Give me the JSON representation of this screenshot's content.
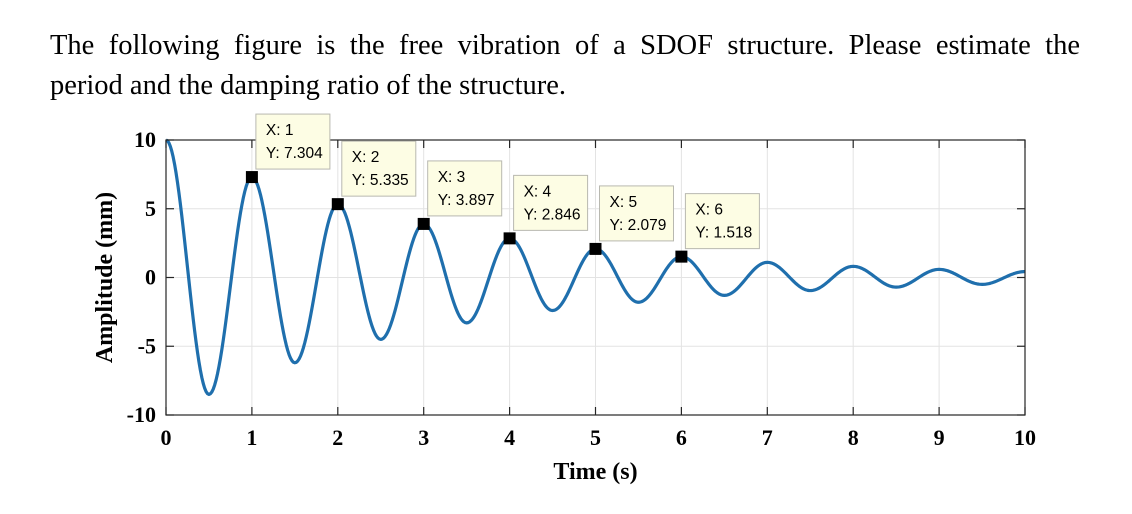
{
  "question": {
    "line1": "The following figure is the free vibration of a SDOF structure. Please estimate the",
    "line2": "period and the damping ratio of the structure."
  },
  "chart_data": {
    "type": "line",
    "xlabel": "Time (s)",
    "ylabel": "Amplitude (mm)",
    "xlim": [
      0,
      10
    ],
    "ylim": [
      -10,
      10
    ],
    "xticks": [
      0,
      1,
      2,
      3,
      4,
      5,
      6,
      7,
      8,
      9,
      10
    ],
    "yticks": [
      10,
      5,
      0,
      -5,
      -10
    ],
    "grid": true,
    "line_color": "#1f6fad",
    "series": [
      {
        "x": [
          0,
          0.5,
          1,
          1.5,
          2,
          2.5,
          3,
          3.5,
          4,
          4.5,
          5,
          5.5,
          6,
          6.5,
          7,
          7.5,
          8,
          8.5,
          9,
          9.5,
          10
        ],
        "y": [
          10,
          -8.5,
          7.304,
          -6.2,
          5.335,
          -4.5,
          3.897,
          -3.3,
          2.846,
          -2.4,
          2.079,
          -1.8,
          1.518,
          -1.3,
          1.1,
          -0.95,
          0.81,
          -0.7,
          0.59,
          -0.5,
          0.43
        ]
      }
    ],
    "datatips": [
      {
        "x": 1,
        "y": 7.304,
        "x_label": "X: 1",
        "y_label": "Y: 7.304"
      },
      {
        "x": 2,
        "y": 5.335,
        "x_label": "X: 2",
        "y_label": "Y: 5.335"
      },
      {
        "x": 3,
        "y": 3.897,
        "x_label": "X: 3",
        "y_label": "Y: 3.897"
      },
      {
        "x": 4,
        "y": 2.846,
        "x_label": "X: 4",
        "y_label": "Y: 2.846"
      },
      {
        "x": 5,
        "y": 2.079,
        "x_label": "X: 5",
        "y_label": "Y: 2.079"
      },
      {
        "x": 6,
        "y": 1.518,
        "x_label": "X: 6",
        "y_label": "Y: 1.518"
      }
    ]
  }
}
